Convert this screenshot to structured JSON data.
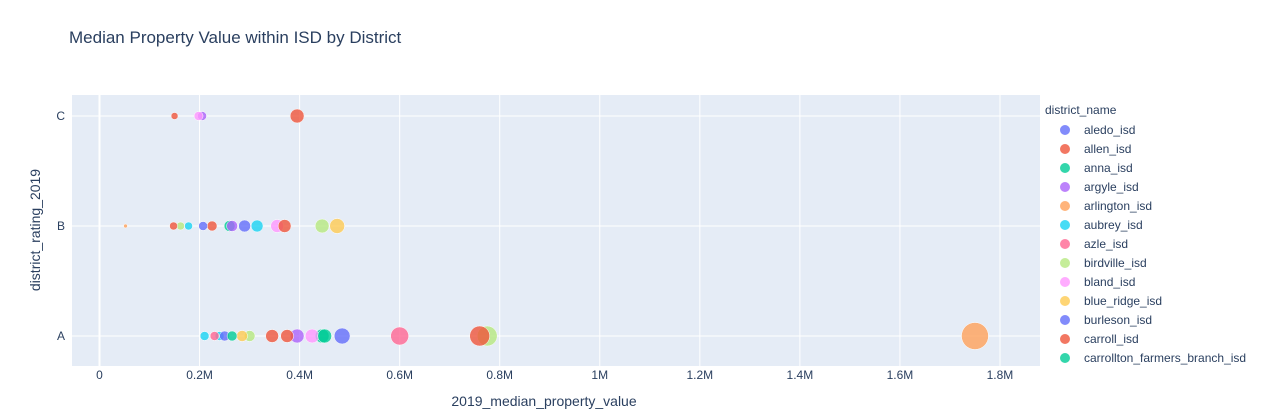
{
  "chart_data": {
    "type": "scatter",
    "title": "Median Property Value within ISD by District",
    "xlabel": "2019_median_property_value",
    "ylabel": "district_rating_2019",
    "x_ticks": [
      {
        "value": 0,
        "label": "0"
      },
      {
        "value": 200000,
        "label": "0.2M"
      },
      {
        "value": 400000,
        "label": "0.4M"
      },
      {
        "value": 600000,
        "label": "0.6M"
      },
      {
        "value": 800000,
        "label": "0.8M"
      },
      {
        "value": 1000000,
        "label": "1M"
      },
      {
        "value": 1200000,
        "label": "1.2M"
      },
      {
        "value": 1400000,
        "label": "1.4M"
      },
      {
        "value": 1600000,
        "label": "1.6M"
      },
      {
        "value": 1800000,
        "label": "1.8M"
      }
    ],
    "xlim": [
      -55000,
      1880000
    ],
    "y_categories": [
      "A",
      "B",
      "C"
    ],
    "grid": true,
    "plot_bgcolor": "#E5ECF6",
    "legend_title": "district_name",
    "legend_position": "right",
    "marker_opacity": 0.8,
    "series": [
      {
        "name": "aledo_isd",
        "color": "#636EFA",
        "points": [
          {
            "x": 485000,
            "y": "A",
            "size": 16
          },
          {
            "x": 290000,
            "y": "B",
            "size": 12
          }
        ]
      },
      {
        "name": "allen_isd",
        "color": "#EF553B",
        "points": [
          {
            "x": 345000,
            "y": "A",
            "size": 13
          },
          {
            "x": 395000,
            "y": "C",
            "size": 14
          },
          {
            "x": 225000,
            "y": "B",
            "size": 10
          }
        ]
      },
      {
        "name": "anna_isd",
        "color": "#00CC96",
        "points": [
          {
            "x": 445000,
            "y": "A",
            "size": 14
          },
          {
            "x": 260000,
            "y": "B",
            "size": 11
          }
        ]
      },
      {
        "name": "argyle_isd",
        "color": "#AB63FA",
        "points": [
          {
            "x": 395000,
            "y": "A",
            "size": 14
          },
          {
            "x": 265000,
            "y": "B",
            "size": 11
          },
          {
            "x": 205000,
            "y": "C",
            "size": 9
          }
        ]
      },
      {
        "name": "arlington_isd",
        "color": "#FFA15A",
        "points": [
          {
            "x": 1750000,
            "y": "A",
            "size": 27
          },
          {
            "x": 52000,
            "y": "B",
            "size": 4
          }
        ]
      },
      {
        "name": "aubrey_isd",
        "color": "#19D3F3",
        "points": [
          {
            "x": 210000,
            "y": "A",
            "size": 9
          },
          {
            "x": 240000,
            "y": "A",
            "size": 9
          },
          {
            "x": 315000,
            "y": "B",
            "size": 12
          },
          {
            "x": 178000,
            "y": "B",
            "size": 8
          }
        ]
      },
      {
        "name": "azle_isd",
        "color": "#FF6692",
        "points": [
          {
            "x": 600000,
            "y": "A",
            "size": 18
          },
          {
            "x": 230000,
            "y": "A",
            "size": 9
          }
        ]
      },
      {
        "name": "birdville_isd",
        "color": "#B6E880",
        "points": [
          {
            "x": 775000,
            "y": "A",
            "size": 20
          },
          {
            "x": 300000,
            "y": "A",
            "size": 11
          },
          {
            "x": 445000,
            "y": "B",
            "size": 14
          },
          {
            "x": 162000,
            "y": "B",
            "size": 8
          }
        ]
      },
      {
        "name": "bland_isd",
        "color": "#FF97FF",
        "points": [
          {
            "x": 425000,
            "y": "A",
            "size": 14
          },
          {
            "x": 355000,
            "y": "B",
            "size": 13
          },
          {
            "x": 198000,
            "y": "C",
            "size": 9
          }
        ]
      },
      {
        "name": "blue_ridge_isd",
        "color": "#FECB52",
        "points": [
          {
            "x": 285000,
            "y": "A",
            "size": 11
          },
          {
            "x": 475000,
            "y": "B",
            "size": 15
          }
        ]
      },
      {
        "name": "burleson_isd",
        "color": "#636EFA",
        "points": [
          {
            "x": 250000,
            "y": "A",
            "size": 10
          },
          {
            "x": 207000,
            "y": "B",
            "size": 9
          }
        ]
      },
      {
        "name": "carroll_isd",
        "color": "#EF553B",
        "points": [
          {
            "x": 760000,
            "y": "A",
            "size": 20
          },
          {
            "x": 375000,
            "y": "A",
            "size": 13
          },
          {
            "x": 370000,
            "y": "B",
            "size": 13
          },
          {
            "x": 148000,
            "y": "B",
            "size": 8
          },
          {
            "x": 150000,
            "y": "C",
            "size": 7
          }
        ]
      },
      {
        "name": "carrollton_farmers_branch_isd",
        "color": "#00CC96",
        "points": [
          {
            "x": 450000,
            "y": "A",
            "size": 14
          },
          {
            "x": 265000,
            "y": "A",
            "size": 10
          }
        ]
      }
    ]
  }
}
